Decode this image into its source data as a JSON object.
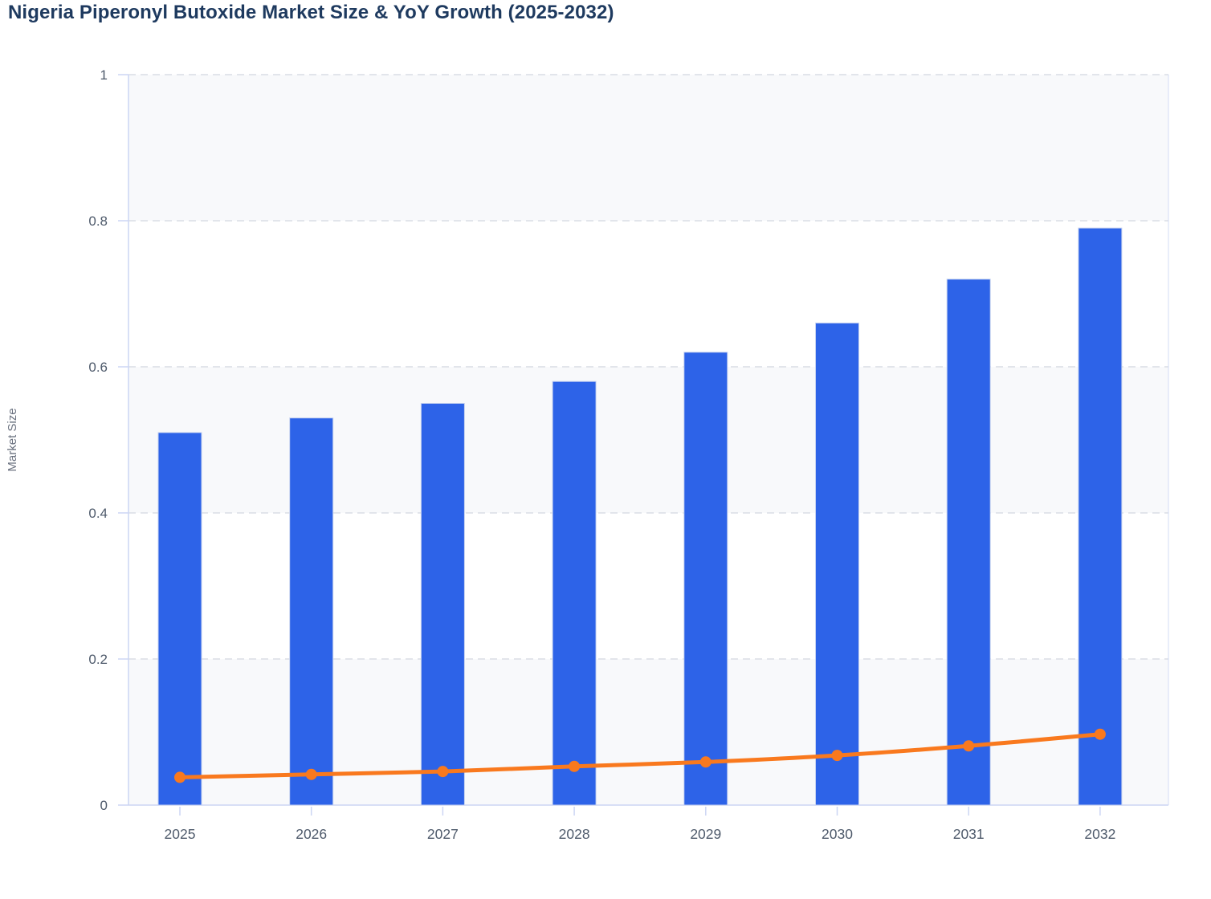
{
  "title": "Nigeria Piperonyl Butoxide Market Size & YoY Growth (2025-2032)",
  "chart_data": {
    "type": "bar",
    "subtype": "bar-line-combo",
    "title": "Nigeria Piperonyl Butoxide Market Size & YoY Growth (2025-2032)",
    "categories": [
      "2025",
      "2026",
      "2027",
      "2028",
      "2029",
      "2030",
      "2031",
      "2032"
    ],
    "series": [
      {
        "name": "Market Size",
        "type": "bar",
        "values": [
          0.51,
          0.53,
          0.55,
          0.58,
          0.62,
          0.66,
          0.72,
          0.79
        ]
      },
      {
        "name": "YoY Growth",
        "type": "line",
        "values": [
          0.038,
          0.042,
          0.046,
          0.053,
          0.059,
          0.068,
          0.081,
          0.097
        ]
      }
    ],
    "xlabel": "",
    "ylabel": "Market Size",
    "ylim": [
      0,
      1
    ],
    "yticks": [
      0,
      0.2,
      0.4,
      0.6,
      0.8,
      1
    ],
    "ytick_labels": [
      "0",
      "0.2",
      "0.4",
      "0.6",
      "0.8",
      "1"
    ],
    "grid": "horizontal-dashed",
    "background_bands": "alternating",
    "legend_position": "none"
  },
  "colors": {
    "title": "#1e3a5f",
    "bar": "#2d63e8",
    "bar_border": "#c6d2f0",
    "line": "#f9791e",
    "marker": "#f9791e",
    "axis": "#ccd6f4",
    "grid": "#e2e5eb",
    "band": "#f8f9fb",
    "tick_text": "#4e5a6b",
    "ylabel_text": "#6b7280",
    "background": "#ffffff"
  }
}
